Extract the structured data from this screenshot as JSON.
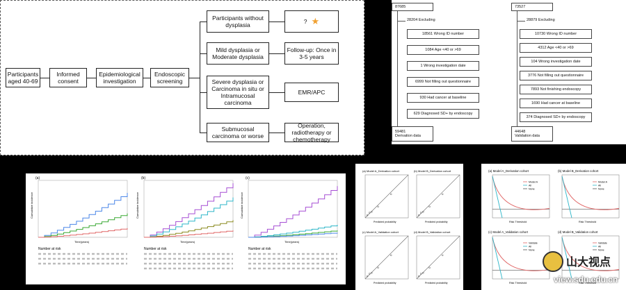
{
  "flowchart": {
    "start": "Participants aged 40-69",
    "consent": "Informed consent",
    "investigation": "Epidemiological investigation",
    "screening": "Endoscopic screening",
    "branches": [
      {
        "finding": "Participants without dysplasia",
        "action": "?"
      },
      {
        "finding": "Mild dysplasia or Moderate dysplasia",
        "action": "Follow-up: Once in 3-5 years"
      },
      {
        "finding": "Severe dysplasia or Carcinoma in situ or Intramucosal carcinoma",
        "action": "EMR/APC"
      },
      {
        "finding": "Submucosal carcinoma or worse",
        "action": "Operation, radiotherapy or chemotherapy"
      }
    ],
    "star_color": "#f0a030"
  },
  "derivation": {
    "total": "87685",
    "excluding": "28204 Excluding",
    "reasons": [
      "18561 Wrong ID number",
      "1084 Age <40 or >69",
      "1 Wrong investigation date",
      "6999 Not filling out questionnaire",
      "930 Had cancer at baseline",
      "629 Diagnosed SD+ by endoscopy"
    ],
    "final_n": "59481",
    "final_label": "Derivation data"
  },
  "validation": {
    "total": "73527",
    "excluding": "28879 Excluding",
    "reasons": [
      "10730 Wrong ID number",
      "4312 Age <40 or >69",
      "104 Wrong investigation date",
      "3776 Not filling out questionnaire",
      "7893 Not finishing endoscopy",
      "1690 Had cancer at baseline",
      "374 Diagnosed SD+ by endoscopy"
    ],
    "final_n": "44648",
    "final_label": "Validation data"
  },
  "km": {
    "panels": [
      "(a)",
      "(b)",
      "(c)"
    ],
    "ylabel": "Cumulative incidence",
    "xlabel": "Time(years)",
    "risk_label": "Number at risk",
    "colors": [
      "#4a86e8",
      "#38a832",
      "#e06666",
      "#a64dd4",
      "#2bb5c8",
      "#8a8a1e"
    ]
  },
  "calibration": {
    "titles": [
      "(a) Model A_Derivation cohort",
      "(b) Model B_Derivation cohort",
      "(c) Model A_Validation cohort",
      "(d) Model B_Validation cohort"
    ],
    "xlabel": "Predicted probability",
    "ylabel": "Observed probability"
  },
  "dca": {
    "titles": [
      "(a) Model A_Derivation cohort",
      "(b) Model B_Derivation cohort",
      "(c) Model A_Validation cohort",
      "(d) Model B_Validation cohort"
    ],
    "xlabel": "Risk Threshold",
    "ylabel": "Net Benefit",
    "legend_top": [
      "Model A",
      "All",
      "None"
    ],
    "legend_bottom": [
      "Validate",
      "All",
      "None"
    ]
  },
  "watermark": {
    "brand": "山大视点",
    "url": "view.sdu.edu.cn",
    "color": "#e8c040"
  }
}
